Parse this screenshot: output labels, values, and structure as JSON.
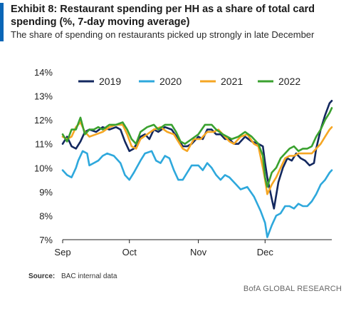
{
  "header": {
    "title": "Exhibit 8: Restaurant spending per HH as a share of total card spending (%, 7-day moving average)",
    "subtitle": "The share of spending on restaurants picked up strongly in late December"
  },
  "footer": {
    "source_label": "Source:",
    "source_text": "BAC internal data",
    "brand": "BofA GLOBAL RESEARCH"
  },
  "colors": {
    "accent": "#0a66b7"
  },
  "chart_data": {
    "type": "line",
    "title": "Exhibit 8: Restaurant spending per HH as a share of total card spending (%, 7-day moving average)",
    "subtitle": "The share of spending on restaurants picked up strongly in late December",
    "xlabel": "",
    "ylabel": "",
    "x_ticks": [
      {
        "label": "Sep",
        "x": 0
      },
      {
        "label": "Oct",
        "x": 30
      },
      {
        "label": "Nov",
        "x": 61
      },
      {
        "label": "Dec",
        "x": 91
      }
    ],
    "xlim": [
      0,
      121
    ],
    "ylim": [
      7,
      14
    ],
    "y_ticks": [
      7,
      8,
      9,
      10,
      11,
      12,
      13,
      14
    ],
    "y_tick_labels": [
      "7%",
      "8%",
      "9%",
      "10%",
      "11%",
      "12%",
      "13%",
      "14%"
    ],
    "grid": false,
    "legend": "top",
    "series": [
      {
        "name": "2019",
        "color": "#13285f",
        "points": [
          [
            0,
            11.0
          ],
          [
            2,
            11.3
          ],
          [
            4,
            10.9
          ],
          [
            6,
            10.8
          ],
          [
            8,
            11.1
          ],
          [
            10,
            11.5
          ],
          [
            12,
            11.6
          ],
          [
            15,
            11.5
          ],
          [
            18,
            11.7
          ],
          [
            21,
            11.6
          ],
          [
            24,
            11.7
          ],
          [
            26,
            11.6
          ],
          [
            28,
            11.1
          ],
          [
            30,
            10.7
          ],
          [
            32,
            10.8
          ],
          [
            35,
            11.3
          ],
          [
            37,
            11.4
          ],
          [
            39,
            11.2
          ],
          [
            41,
            11.6
          ],
          [
            43,
            11.5
          ],
          [
            46,
            11.7
          ],
          [
            49,
            11.6
          ],
          [
            52,
            11.2
          ],
          [
            54,
            10.9
          ],
          [
            56,
            10.9
          ],
          [
            58,
            11.0
          ],
          [
            61,
            11.3
          ],
          [
            63,
            11.2
          ],
          [
            65,
            11.6
          ],
          [
            67,
            11.6
          ],
          [
            69,
            11.4
          ],
          [
            71,
            11.4
          ],
          [
            73,
            11.2
          ],
          [
            75,
            11.2
          ],
          [
            77,
            11.0
          ],
          [
            79,
            11.0
          ],
          [
            82,
            11.3
          ],
          [
            85,
            11.1
          ],
          [
            88,
            11.0
          ],
          [
            90,
            10.9
          ],
          [
            91,
            10.2
          ],
          [
            92,
            9.6
          ],
          [
            94,
            8.7
          ],
          [
            95,
            8.3
          ],
          [
            97,
            9.4
          ],
          [
            99,
            10.0
          ],
          [
            101,
            10.4
          ],
          [
            103,
            10.3
          ],
          [
            105,
            10.6
          ],
          [
            107,
            10.4
          ],
          [
            109,
            10.3
          ],
          [
            111,
            10.1
          ],
          [
            113,
            10.2
          ],
          [
            114,
            10.8
          ],
          [
            116,
            11.6
          ],
          [
            118,
            12.2
          ],
          [
            120,
            12.7
          ],
          [
            121,
            12.8
          ]
        ]
      },
      {
        "name": "2020",
        "color": "#2ea8dc",
        "points": [
          [
            0,
            9.9
          ],
          [
            2,
            9.7
          ],
          [
            4,
            9.6
          ],
          [
            6,
            10.0
          ],
          [
            7,
            10.3
          ],
          [
            9,
            10.7
          ],
          [
            11,
            10.6
          ],
          [
            12,
            10.1
          ],
          [
            14,
            10.2
          ],
          [
            16,
            10.3
          ],
          [
            18,
            10.5
          ],
          [
            20,
            10.6
          ],
          [
            23,
            10.5
          ],
          [
            26,
            10.2
          ],
          [
            28,
            9.7
          ],
          [
            30,
            9.5
          ],
          [
            32,
            9.8
          ],
          [
            35,
            10.3
          ],
          [
            37,
            10.6
          ],
          [
            40,
            10.7
          ],
          [
            42,
            10.3
          ],
          [
            44,
            10.2
          ],
          [
            46,
            10.5
          ],
          [
            48,
            10.4
          ],
          [
            50,
            9.9
          ],
          [
            52,
            9.5
          ],
          [
            54,
            9.5
          ],
          [
            56,
            9.8
          ],
          [
            58,
            10.1
          ],
          [
            61,
            10.1
          ],
          [
            63,
            9.9
          ],
          [
            65,
            10.2
          ],
          [
            67,
            10.0
          ],
          [
            69,
            9.7
          ],
          [
            71,
            9.5
          ],
          [
            73,
            9.7
          ],
          [
            75,
            9.6
          ],
          [
            78,
            9.3
          ],
          [
            80,
            9.1
          ],
          [
            83,
            9.2
          ],
          [
            86,
            8.8
          ],
          [
            88,
            8.4
          ],
          [
            89,
            8.2
          ],
          [
            91,
            7.7
          ],
          [
            92,
            7.1
          ],
          [
            94,
            7.6
          ],
          [
            96,
            8.0
          ],
          [
            98,
            8.1
          ],
          [
            100,
            8.4
          ],
          [
            102,
            8.4
          ],
          [
            104,
            8.3
          ],
          [
            106,
            8.5
          ],
          [
            108,
            8.4
          ],
          [
            110,
            8.4
          ],
          [
            112,
            8.6
          ],
          [
            114,
            8.9
          ],
          [
            116,
            9.3
          ],
          [
            118,
            9.5
          ],
          [
            120,
            9.8
          ],
          [
            121,
            9.9
          ]
        ]
      },
      {
        "name": "2021",
        "color": "#f5a623",
        "points": [
          [
            0,
            11.3
          ],
          [
            2,
            11.2
          ],
          [
            4,
            11.3
          ],
          [
            6,
            11.7
          ],
          [
            8,
            11.9
          ],
          [
            10,
            11.5
          ],
          [
            12,
            11.3
          ],
          [
            15,
            11.4
          ],
          [
            18,
            11.5
          ],
          [
            21,
            11.7
          ],
          [
            24,
            11.8
          ],
          [
            27,
            11.8
          ],
          [
            29,
            11.4
          ],
          [
            31,
            10.9
          ],
          [
            33,
            10.8
          ],
          [
            35,
            11.2
          ],
          [
            38,
            11.4
          ],
          [
            41,
            11.6
          ],
          [
            44,
            11.7
          ],
          [
            47,
            11.5
          ],
          [
            50,
            11.4
          ],
          [
            52,
            11.1
          ],
          [
            54,
            10.8
          ],
          [
            56,
            10.7
          ],
          [
            59,
            11.2
          ],
          [
            62,
            11.2
          ],
          [
            65,
            11.5
          ],
          [
            68,
            11.5
          ],
          [
            70,
            11.6
          ],
          [
            72,
            11.4
          ],
          [
            75,
            11.1
          ],
          [
            77,
            11.0
          ],
          [
            80,
            11.3
          ],
          [
            83,
            11.4
          ],
          [
            86,
            11.0
          ],
          [
            88,
            10.9
          ],
          [
            90,
            10.0
          ],
          [
            91,
            9.5
          ],
          [
            92,
            8.9
          ],
          [
            94,
            9.3
          ],
          [
            96,
            9.6
          ],
          [
            98,
            10.0
          ],
          [
            100,
            10.4
          ],
          [
            102,
            10.5
          ],
          [
            104,
            10.5
          ],
          [
            106,
            10.6
          ],
          [
            108,
            10.6
          ],
          [
            110,
            10.6
          ],
          [
            112,
            10.6
          ],
          [
            114,
            10.8
          ],
          [
            116,
            11.0
          ],
          [
            118,
            11.3
          ],
          [
            120,
            11.6
          ],
          [
            121,
            11.7
          ]
        ]
      },
      {
        "name": "2022",
        "color": "#3aa12f",
        "points": [
          [
            0,
            11.4
          ],
          [
            2,
            11.1
          ],
          [
            4,
            11.6
          ],
          [
            6,
            11.6
          ],
          [
            8,
            12.1
          ],
          [
            10,
            11.4
          ],
          [
            12,
            11.6
          ],
          [
            14,
            11.6
          ],
          [
            16,
            11.7
          ],
          [
            18,
            11.6
          ],
          [
            21,
            11.8
          ],
          [
            24,
            11.8
          ],
          [
            27,
            11.9
          ],
          [
            29,
            11.6
          ],
          [
            31,
            11.2
          ],
          [
            33,
            11.0
          ],
          [
            35,
            11.5
          ],
          [
            38,
            11.7
          ],
          [
            41,
            11.8
          ],
          [
            43,
            11.6
          ],
          [
            46,
            11.8
          ],
          [
            49,
            11.8
          ],
          [
            51,
            11.5
          ],
          [
            53,
            11.1
          ],
          [
            55,
            11.0
          ],
          [
            58,
            11.2
          ],
          [
            61,
            11.4
          ],
          [
            64,
            11.8
          ],
          [
            67,
            11.8
          ],
          [
            69,
            11.6
          ],
          [
            72,
            11.4
          ],
          [
            74,
            11.3
          ],
          [
            76,
            11.2
          ],
          [
            79,
            11.3
          ],
          [
            82,
            11.5
          ],
          [
            85,
            11.3
          ],
          [
            88,
            11.0
          ],
          [
            90,
            10.5
          ],
          [
            91,
            9.6
          ],
          [
            92,
            9.2
          ],
          [
            94,
            9.8
          ],
          [
            96,
            10.0
          ],
          [
            98,
            10.4
          ],
          [
            100,
            10.6
          ],
          [
            102,
            10.8
          ],
          [
            104,
            10.9
          ],
          [
            106,
            10.7
          ],
          [
            108,
            10.8
          ],
          [
            110,
            10.8
          ],
          [
            112,
            10.9
          ],
          [
            114,
            11.3
          ],
          [
            116,
            11.6
          ],
          [
            118,
            12.0
          ],
          [
            120,
            12.3
          ],
          [
            121,
            12.5
          ]
        ]
      }
    ]
  }
}
